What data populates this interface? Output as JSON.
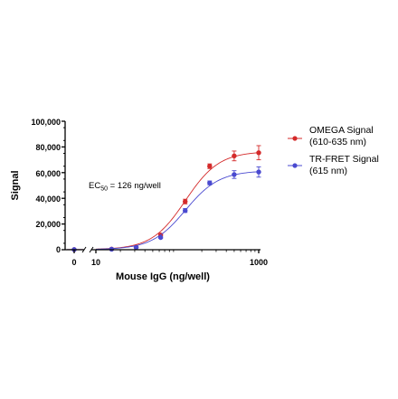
{
  "chart_data": {
    "type": "scatter",
    "xlabel": "Mouse IgG (ng/well)",
    "ylabel": "Signal",
    "x_scale": "log10 with broken axis (0 shown separately)",
    "x_ticks": [
      "0",
      "10",
      "1000"
    ],
    "y_ticks": [
      "0",
      "20,000",
      "40,000",
      "60,000",
      "80,000",
      "100,000"
    ],
    "ylim": [
      0,
      100000
    ],
    "xlim": [
      10,
      1000
    ],
    "grid": false,
    "legend_position": "right",
    "annotation": {
      "prefix": "EC",
      "subscript": "50",
      "suffix": " = 126 ng/well"
    },
    "series": [
      {
        "name": "OMEGA Signal",
        "name_line2": "(610-635 nm)",
        "color": "#d42a2a",
        "x": [
          0,
          15.6,
          31.25,
          62.5,
          125,
          250,
          500,
          1000
        ],
        "y": [
          100,
          500,
          2000,
          11500,
          37500,
          65000,
          73000,
          75500
        ],
        "err": [
          0,
          200,
          300,
          700,
          1800,
          1800,
          3800,
          5500
        ],
        "fit": {
          "bottom": 100,
          "top": 76500,
          "ec50": 126,
          "hill": 2.1
        }
      },
      {
        "name": "TR-FRET Signal",
        "name_line2": "(615 nm)",
        "color": "#4a4ad0",
        "x": [
          0,
          15.6,
          31.25,
          62.5,
          125,
          250,
          500,
          1000
        ],
        "y": [
          100,
          400,
          1800,
          9500,
          30500,
          52000,
          58500,
          60500
        ],
        "err": [
          0,
          150,
          300,
          700,
          1500,
          1500,
          3000,
          4000
        ],
        "fit": {
          "bottom": 100,
          "top": 61500,
          "ec50": 126,
          "hill": 2.1
        }
      }
    ]
  }
}
